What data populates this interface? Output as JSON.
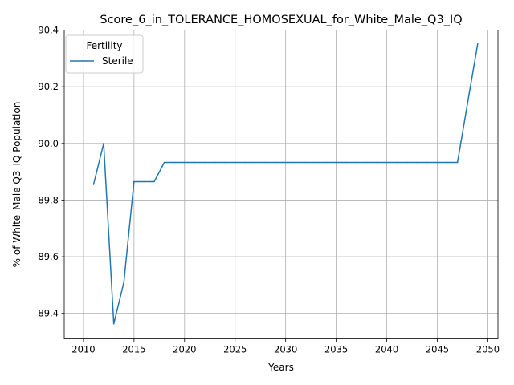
{
  "chart_data": {
    "type": "line",
    "title": "Score_6_in_TOLERANCE_HOMOSEXUAL_for_White_Male_Q3_IQ",
    "xlabel": "Years",
    "ylabel": "% of White_Male Q3_IQ Population",
    "xlim": [
      2008.1,
      2051.0
    ],
    "ylim": [
      89.31,
      90.4
    ],
    "xticks": [
      2010,
      2015,
      2020,
      2025,
      2030,
      2035,
      2040,
      2045,
      2050
    ],
    "xtick_labels": [
      "2010",
      "2015",
      "2020",
      "2025",
      "2030",
      "2035",
      "2040",
      "2045",
      "2050"
    ],
    "yticks": [
      89.4,
      89.6,
      89.8,
      90.0,
      90.2,
      90.4
    ],
    "ytick_labels": [
      "89.4",
      "89.6",
      "89.8",
      "90.0",
      "90.2",
      "90.4"
    ],
    "grid": true,
    "legend": {
      "title": "Fertility",
      "placement": "top-left"
    },
    "series": [
      {
        "name": "Sterile",
        "color": "#1f77b4",
        "x": [
          2011,
          2012,
          2013,
          2014,
          2015,
          2016,
          2017,
          2018,
          2019,
          2020,
          2021,
          2022,
          2023,
          2024,
          2025,
          2026,
          2027,
          2028,
          2029,
          2030,
          2031,
          2032,
          2033,
          2034,
          2035,
          2036,
          2037,
          2038,
          2039,
          2040,
          2041,
          2042,
          2043,
          2044,
          2045,
          2046,
          2047,
          2048,
          2049
        ],
        "y": [
          89.855,
          90.0,
          89.363,
          89.51,
          89.865,
          89.865,
          89.865,
          89.933,
          89.933,
          89.933,
          89.933,
          89.933,
          89.933,
          89.933,
          89.933,
          89.933,
          89.933,
          89.933,
          89.933,
          89.933,
          89.933,
          89.933,
          89.933,
          89.933,
          89.933,
          89.933,
          89.933,
          89.933,
          89.933,
          89.933,
          89.933,
          89.933,
          89.933,
          89.933,
          89.933,
          89.933,
          89.933,
          90.143,
          90.352
        ]
      }
    ]
  }
}
